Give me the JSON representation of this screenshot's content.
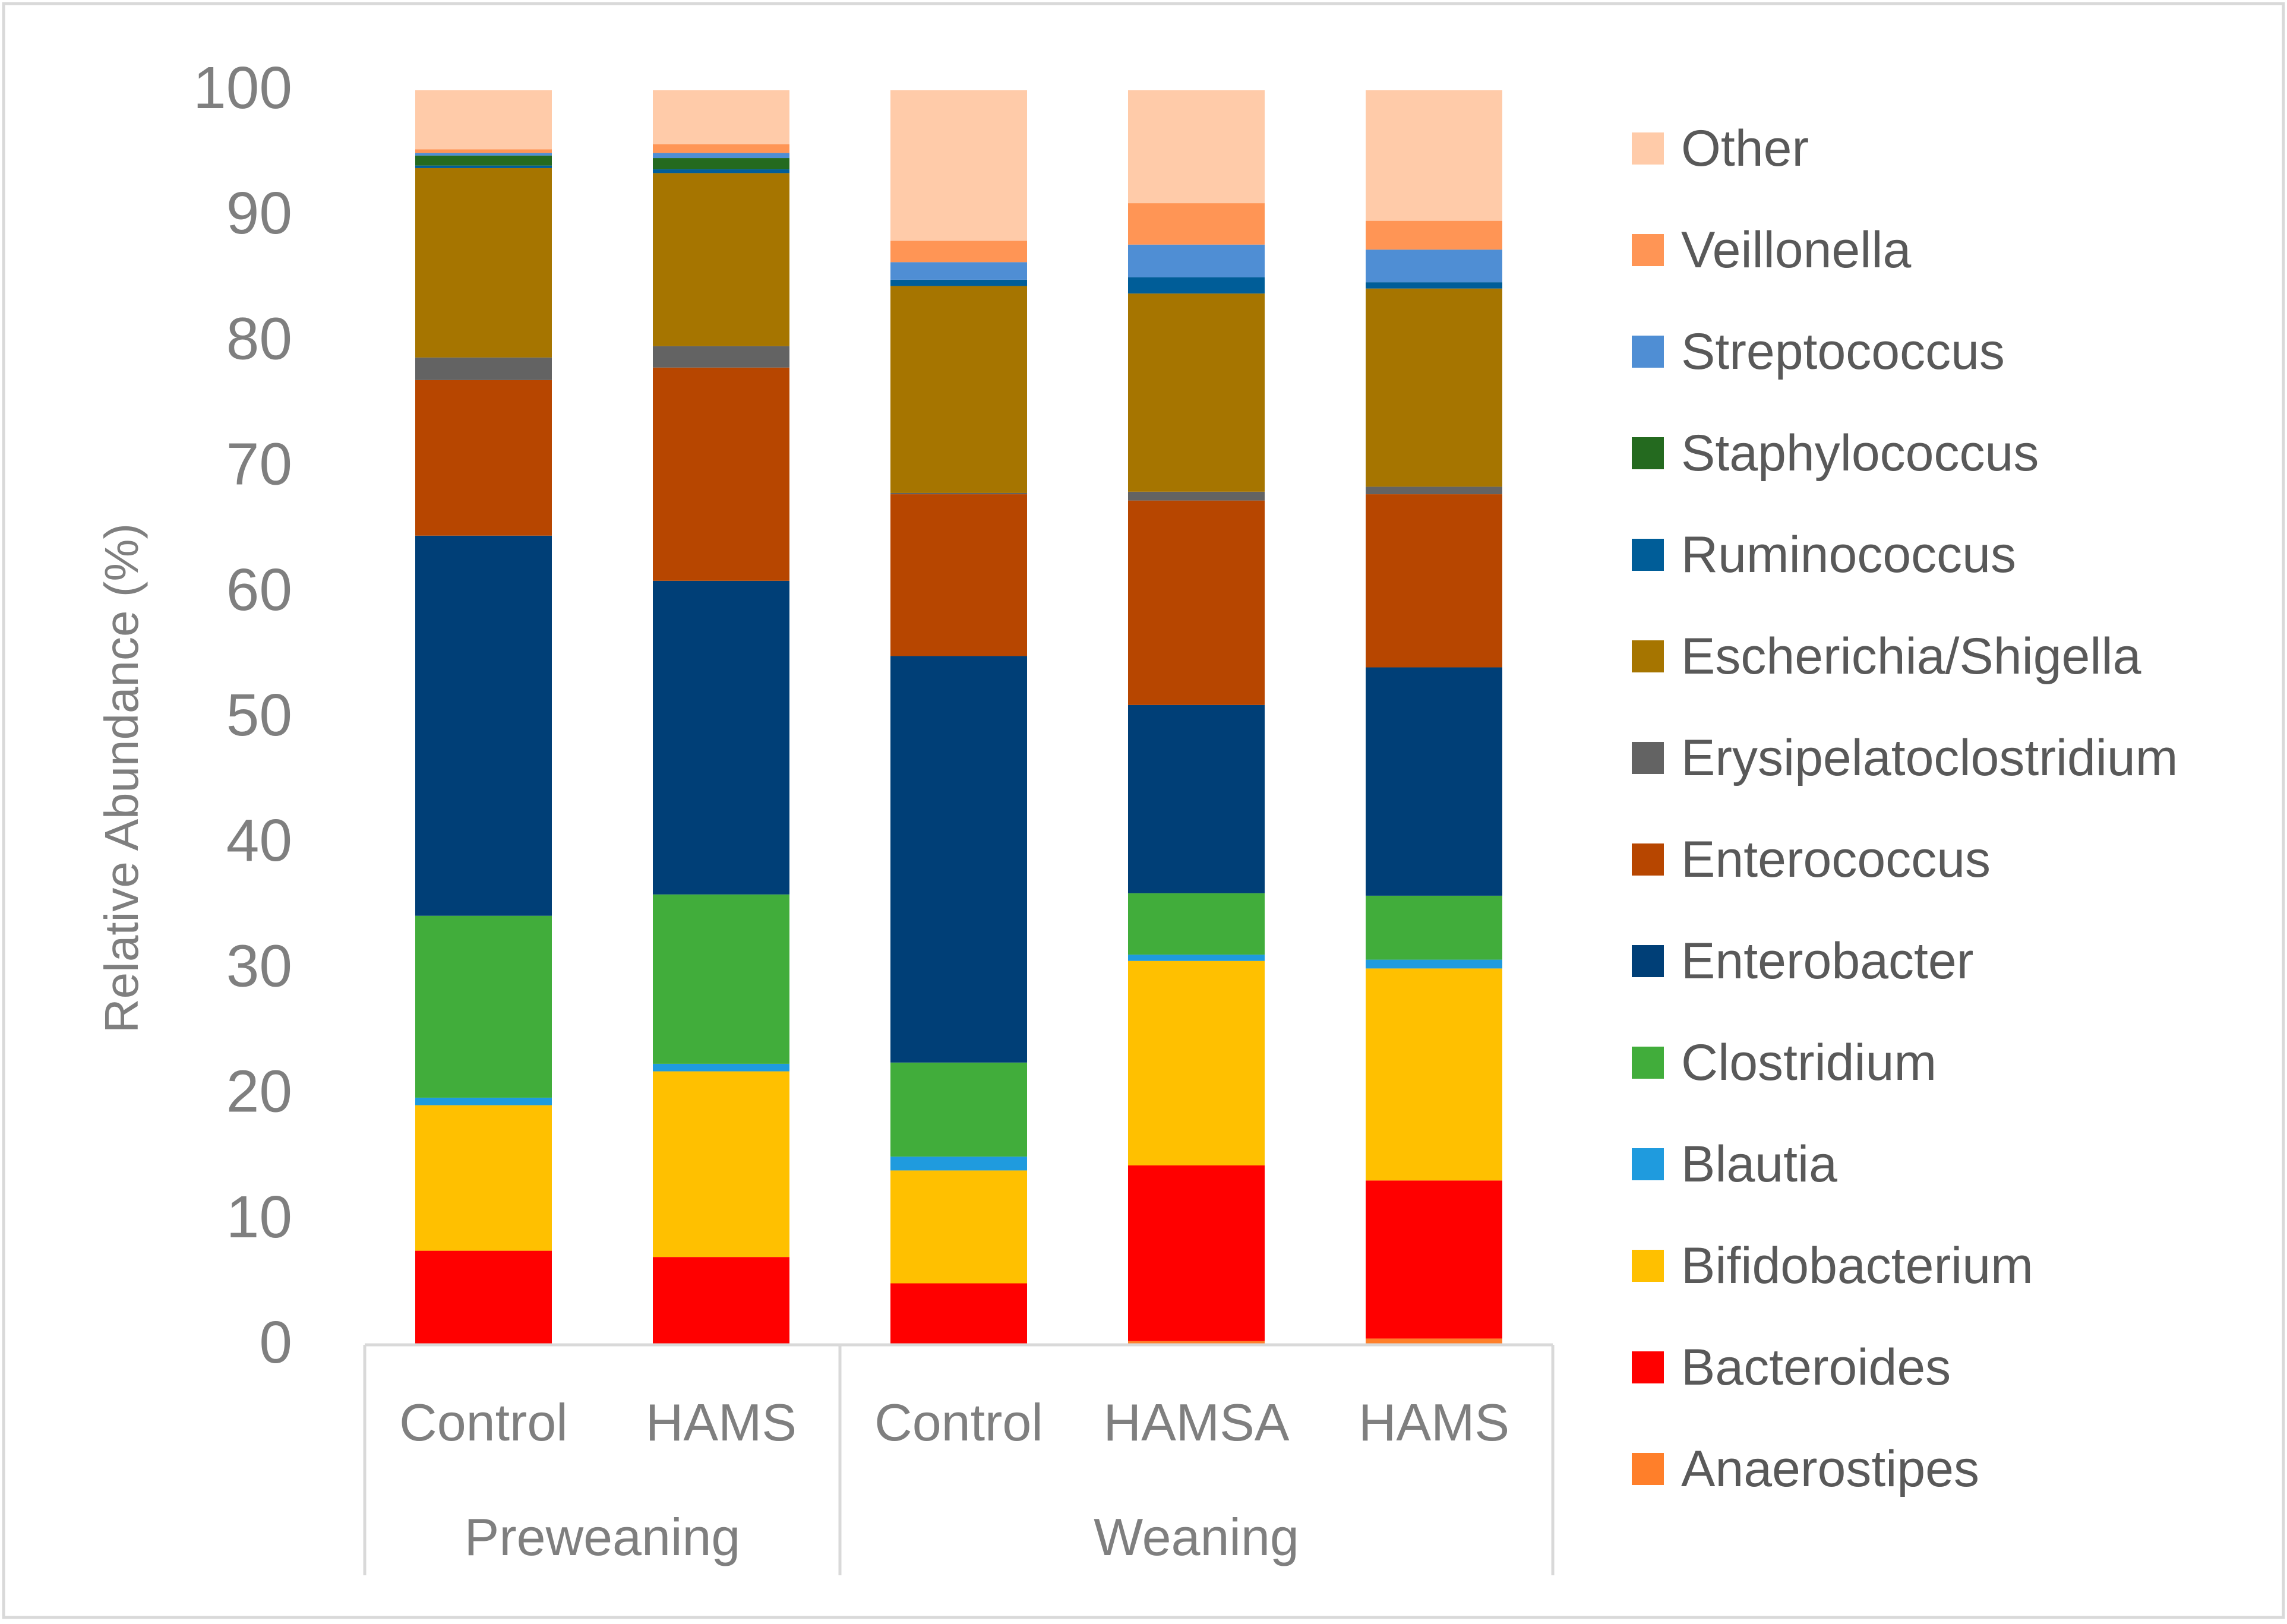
{
  "chart_data": {
    "type": "bar",
    "stacked": true,
    "ylabel": "Relative Abundance (%)",
    "ylim": [
      0,
      100
    ],
    "yticks": [
      "0",
      "10",
      "20",
      "30",
      "40",
      "50",
      "60",
      "70",
      "80",
      "90",
      "100"
    ],
    "grid": false,
    "legend_position": "right",
    "categories": [
      "Control",
      "HAMS",
      "Control",
      "HAMSA",
      "HAMS"
    ],
    "groups": [
      {
        "label": "Preweaning",
        "span": 2
      },
      {
        "label": "Weaning",
        "span": 3
      }
    ],
    "series": [
      {
        "name": "Anaerostipes",
        "color": "#FF7F2A",
        "values": [
          0.0,
          0.0,
          0.1,
          0.3,
          0.5
        ]
      },
      {
        "name": "Bacteroides",
        "color": "#FF0000",
        "values": [
          7.5,
          7.0,
          4.8,
          14.0,
          12.6
        ]
      },
      {
        "name": "Bifidobacterium",
        "color": "#FFC000",
        "values": [
          11.6,
          14.8,
          9.0,
          16.3,
          16.9
        ]
      },
      {
        "name": "Blautia",
        "color": "#1F9BDE",
        "values": [
          0.6,
          0.6,
          1.1,
          0.5,
          0.7
        ]
      },
      {
        "name": "Clostridium",
        "color": "#41AD3B",
        "values": [
          14.5,
          13.5,
          7.5,
          4.9,
          5.1
        ]
      },
      {
        "name": "Enterobacter",
        "color": "#003F77",
        "values": [
          30.3,
          25.0,
          32.4,
          15.0,
          18.2
        ]
      },
      {
        "name": "Enterococcus",
        "color": "#B74600",
        "values": [
          12.4,
          17.0,
          12.9,
          16.3,
          13.8
        ]
      },
      {
        "name": "Erysipelatoclostridium",
        "color": "#636363",
        "values": [
          1.8,
          1.7,
          0.1,
          0.7,
          0.6
        ]
      },
      {
        "name": "Escherichia/Shigella",
        "color": "#A67500",
        "values": [
          15.1,
          13.8,
          16.5,
          15.8,
          15.8
        ]
      },
      {
        "name": "Ruminococcus",
        "color": "#005D98",
        "values": [
          0.2,
          0.3,
          0.5,
          1.3,
          0.5
        ]
      },
      {
        "name": "Staphylococcus",
        "color": "#246A1F",
        "values": [
          0.8,
          0.9,
          0.0,
          0.0,
          0.0
        ]
      },
      {
        "name": "Streptococcus",
        "color": "#4F8ED4",
        "values": [
          0.2,
          0.4,
          1.4,
          2.6,
          2.6
        ]
      },
      {
        "name": "Veillonella",
        "color": "#FF9555",
        "values": [
          0.3,
          0.7,
          1.7,
          3.3,
          2.3
        ]
      },
      {
        "name": "Other",
        "color": "#FFCBA9",
        "values": [
          4.7,
          4.3,
          12.0,
          9.0,
          10.4
        ]
      }
    ]
  }
}
